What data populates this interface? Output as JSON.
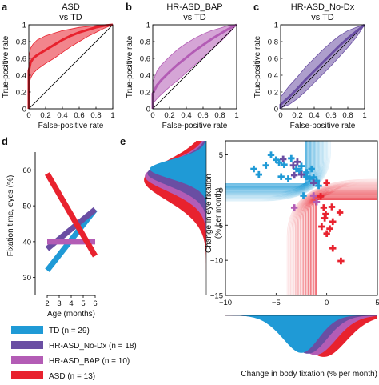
{
  "colors": {
    "TD": "#1f9ad6",
    "HR-ASD_No-Dx": "#6a4ea3",
    "HR-ASD_BAP": "#b35cb5",
    "ASD": "#e8222e"
  },
  "roc_panels": [
    {
      "letter": "a",
      "title_line1": "ASD",
      "title_line2": "vs TD",
      "group": "ASD",
      "xlabel": "False-positive rate",
      "ylabel": "True-positive rate",
      "xticks": [
        "0",
        "0.2",
        "0.4",
        "0.6",
        "0.8",
        "1"
      ],
      "yticks": [
        "0",
        "0.2",
        "0.4",
        "0.6",
        "0.8",
        "1"
      ],
      "curve": [
        [
          0,
          0
        ],
        [
          0,
          0.45
        ],
        [
          0.02,
          0.55
        ],
        [
          0.05,
          0.6
        ],
        [
          0.1,
          0.64
        ],
        [
          0.2,
          0.7
        ],
        [
          0.3,
          0.76
        ],
        [
          0.4,
          0.82
        ],
        [
          0.5,
          0.87
        ],
        [
          0.6,
          0.91
        ],
        [
          0.7,
          0.94
        ],
        [
          0.8,
          0.97
        ],
        [
          0.9,
          0.99
        ],
        [
          1,
          1
        ]
      ],
      "upper": [
        [
          0,
          0
        ],
        [
          0,
          0.62
        ],
        [
          0.02,
          0.72
        ],
        [
          0.05,
          0.77
        ],
        [
          0.1,
          0.82
        ],
        [
          0.2,
          0.87
        ],
        [
          0.3,
          0.9
        ],
        [
          0.4,
          0.93
        ],
        [
          0.5,
          0.95
        ],
        [
          0.6,
          0.97
        ],
        [
          0.7,
          0.98
        ],
        [
          0.8,
          0.99
        ],
        [
          0.9,
          1
        ],
        [
          1,
          1
        ]
      ],
      "lower": [
        [
          0,
          0
        ],
        [
          0,
          0.28
        ],
        [
          0.02,
          0.36
        ],
        [
          0.05,
          0.42
        ],
        [
          0.1,
          0.47
        ],
        [
          0.2,
          0.54
        ],
        [
          0.3,
          0.6
        ],
        [
          0.4,
          0.67
        ],
        [
          0.5,
          0.74
        ],
        [
          0.6,
          0.8
        ],
        [
          0.7,
          0.86
        ],
        [
          0.8,
          0.91
        ],
        [
          0.9,
          0.96
        ],
        [
          1,
          1
        ]
      ]
    },
    {
      "letter": "b",
      "title_line1": "HR-ASD_BAP",
      "title_line2": "vs TD",
      "group": "HR-ASD_BAP",
      "xlabel": "False-positive rate",
      "ylabel": "True-positive rate",
      "xticks": [
        "0",
        "0.2",
        "0.4",
        "0.6",
        "0.8",
        "1"
      ],
      "yticks": [
        "0",
        "0.2",
        "0.4",
        "0.6",
        "0.8",
        "1"
      ],
      "curve": [
        [
          0,
          0
        ],
        [
          0,
          0.18
        ],
        [
          0.05,
          0.28
        ],
        [
          0.1,
          0.34
        ],
        [
          0.2,
          0.44
        ],
        [
          0.3,
          0.53
        ],
        [
          0.4,
          0.61
        ],
        [
          0.5,
          0.69
        ],
        [
          0.6,
          0.76
        ],
        [
          0.7,
          0.83
        ],
        [
          0.8,
          0.89
        ],
        [
          0.9,
          0.95
        ],
        [
          1,
          1
        ]
      ],
      "upper": [
        [
          0,
          0
        ],
        [
          0,
          0.32
        ],
        [
          0.05,
          0.45
        ],
        [
          0.1,
          0.52
        ],
        [
          0.2,
          0.62
        ],
        [
          0.3,
          0.71
        ],
        [
          0.4,
          0.78
        ],
        [
          0.5,
          0.84
        ],
        [
          0.6,
          0.89
        ],
        [
          0.7,
          0.93
        ],
        [
          0.8,
          0.96
        ],
        [
          0.9,
          0.99
        ],
        [
          1,
          1
        ]
      ],
      "lower": [
        [
          0,
          0
        ],
        [
          0,
          0.06
        ],
        [
          0.05,
          0.12
        ],
        [
          0.1,
          0.17
        ],
        [
          0.2,
          0.26
        ],
        [
          0.3,
          0.34
        ],
        [
          0.4,
          0.43
        ],
        [
          0.5,
          0.52
        ],
        [
          0.6,
          0.61
        ],
        [
          0.7,
          0.7
        ],
        [
          0.8,
          0.79
        ],
        [
          0.9,
          0.89
        ],
        [
          1,
          1
        ]
      ]
    },
    {
      "letter": "c",
      "title_line1": "HR-ASD_No-Dx",
      "title_line2": "vs TD",
      "group": "HR-ASD_No-Dx",
      "xlabel": "False-positive rate",
      "ylabel": "True-positive rate",
      "xticks": [
        "0",
        "0.2",
        "0.4",
        "0.6",
        "0.8",
        "1"
      ],
      "yticks": [
        "0",
        "0.2",
        "0.4",
        "0.6",
        "0.8",
        "1"
      ],
      "curve": [
        [
          0,
          0
        ],
        [
          0,
          0.05
        ],
        [
          0.1,
          0.14
        ],
        [
          0.2,
          0.24
        ],
        [
          0.3,
          0.35
        ],
        [
          0.4,
          0.45
        ],
        [
          0.5,
          0.55
        ],
        [
          0.6,
          0.65
        ],
        [
          0.7,
          0.75
        ],
        [
          0.8,
          0.84
        ],
        [
          0.9,
          0.92
        ],
        [
          1,
          1
        ]
      ],
      "upper": [
        [
          0,
          0
        ],
        [
          0,
          0.14
        ],
        [
          0.1,
          0.27
        ],
        [
          0.2,
          0.38
        ],
        [
          0.3,
          0.5
        ],
        [
          0.4,
          0.6
        ],
        [
          0.5,
          0.7
        ],
        [
          0.6,
          0.79
        ],
        [
          0.7,
          0.87
        ],
        [
          0.8,
          0.93
        ],
        [
          0.9,
          0.97
        ],
        [
          1,
          1
        ]
      ],
      "lower": [
        [
          0,
          0
        ],
        [
          0,
          0.01
        ],
        [
          0.1,
          0.05
        ],
        [
          0.2,
          0.12
        ],
        [
          0.3,
          0.21
        ],
        [
          0.4,
          0.31
        ],
        [
          0.5,
          0.41
        ],
        [
          0.6,
          0.51
        ],
        [
          0.7,
          0.62
        ],
        [
          0.8,
          0.73
        ],
        [
          0.9,
          0.85
        ],
        [
          1,
          1
        ]
      ]
    }
  ],
  "panel_d": {
    "letter": "d",
    "ylabel": "Fixation time, eyes (%)",
    "xlabel_line1": "Age (months)",
    "xticks": [
      "2",
      "3",
      "4",
      "5",
      "6"
    ],
    "yticks": [
      "30",
      "40",
      "50",
      "60"
    ],
    "ylim": [
      25,
      65
    ],
    "xlim": [
      1,
      7
    ],
    "lines": [
      {
        "group": "TD",
        "x": [
          2,
          6
        ],
        "y": [
          32,
          49
        ]
      },
      {
        "group": "HR-ASD_No-Dx",
        "x": [
          2,
          6
        ],
        "y": [
          38,
          49
        ]
      },
      {
        "group": "HR-ASD_BAP",
        "x": [
          2,
          6
        ],
        "y": [
          40,
          40
        ]
      },
      {
        "group": "ASD",
        "x": [
          2,
          6
        ],
        "y": [
          59,
          36
        ]
      }
    ]
  },
  "panel_e": {
    "letter": "e",
    "ylabel_line1": "Change in eye fixation",
    "ylabel_line2": "(% per month)",
    "xlabel": "Change in body fixation (% per month)",
    "xticks": [
      "−10",
      "−5",
      "0",
      "5"
    ],
    "yticks": [
      "5",
      "0",
      "−5",
      "−10",
      "−15"
    ],
    "xlim": [
      -10,
      5
    ],
    "ylim": [
      -15,
      7
    ],
    "points": {
      "TD": [
        [
          -6.0,
          3.5
        ],
        [
          -5.5,
          5.0
        ],
        [
          -5.0,
          4.3
        ],
        [
          -4.7,
          3.9
        ],
        [
          -4.2,
          3.6
        ],
        [
          -3.5,
          4.5
        ],
        [
          -3.0,
          3.0
        ],
        [
          -2.7,
          2.7
        ],
        [
          -2.5,
          3.4
        ],
        [
          -2.0,
          2.5
        ],
        [
          -2.0,
          1.9
        ],
        [
          -1.5,
          3.0
        ],
        [
          -1.7,
          1.6
        ],
        [
          -1.3,
          1.8
        ],
        [
          -1.0,
          1.3
        ],
        [
          -4.5,
          1.9
        ],
        [
          -3.8,
          1.6
        ],
        [
          -7.2,
          3.0
        ],
        [
          -6.7,
          2.2
        ],
        [
          -2.3,
          -0.8
        ],
        [
          -0.8,
          0.6
        ]
      ],
      "HR-ASD_No-Dx": [
        [
          -4.3,
          4.4
        ],
        [
          -3.3,
          3.5
        ],
        [
          -2.9,
          4.0
        ],
        [
          -2.5,
          2.2
        ],
        [
          -3.2,
          2.1
        ],
        [
          -1.3,
          1.0
        ]
      ],
      "HR-ASD_BAP": [
        [
          -1.3,
          -0.8
        ],
        [
          -3.2,
          -2.5
        ],
        [
          -1.0,
          -1.7
        ]
      ],
      "ASD": [
        [
          0.0,
          1.0
        ],
        [
          -0.6,
          -0.9
        ],
        [
          -0.3,
          -2.5
        ],
        [
          0.5,
          -2.4
        ],
        [
          -0.1,
          -3.4
        ],
        [
          0.3,
          -5.5
        ],
        [
          0.0,
          -6.2
        ],
        [
          -0.5,
          -5.2
        ],
        [
          1.3,
          -3.2
        ],
        [
          0.6,
          -8.3
        ],
        [
          1.4,
          -10.1
        ],
        [
          -0.2,
          -4.0
        ],
        [
          0.6,
          -4.5
        ]
      ]
    }
  },
  "legend": {
    "items": [
      {
        "group": "TD",
        "name": "TD",
        "n_text": "(n = 29)"
      },
      {
        "group": "HR-ASD_No-Dx",
        "name": "HR-ASD_No-Dx",
        "n_text": "(n = 18)"
      },
      {
        "group": "HR-ASD_BAP",
        "name": "HR-ASD_BAP",
        "n_text": "(n = 10)"
      },
      {
        "group": "ASD",
        "name": "ASD",
        "n_text": "(n = 13)"
      }
    ]
  },
  "chart_data": [
    {
      "type": "area",
      "panel": "a",
      "title": "ASD vs TD",
      "xlabel": "False-positive rate",
      "ylabel": "True-positive rate",
      "xlim": [
        0,
        1
      ],
      "ylim": [
        0,
        1
      ]
    },
    {
      "type": "area",
      "panel": "b",
      "title": "HR-ASD_BAP vs TD",
      "xlabel": "False-positive rate",
      "ylabel": "True-positive rate",
      "xlim": [
        0,
        1
      ],
      "ylim": [
        0,
        1
      ]
    },
    {
      "type": "area",
      "panel": "c",
      "title": "HR-ASD_No-Dx vs TD",
      "xlabel": "False-positive rate",
      "ylabel": "True-positive rate",
      "xlim": [
        0,
        1
      ],
      "ylim": [
        0,
        1
      ]
    },
    {
      "type": "line",
      "panel": "d",
      "xlabel": "Age (months)",
      "ylabel": "Fixation time, eyes (%)",
      "x": [
        2,
        6
      ],
      "series": [
        {
          "name": "TD",
          "values": [
            32,
            49
          ]
        },
        {
          "name": "HR-ASD_No-Dx",
          "values": [
            38,
            49
          ]
        },
        {
          "name": "HR-ASD_BAP",
          "values": [
            40,
            40
          ]
        },
        {
          "name": "ASD",
          "values": [
            59,
            36
          ]
        }
      ]
    },
    {
      "type": "scatter",
      "panel": "e",
      "xlabel": "Change in body fixation (% per month)",
      "ylabel": "Change in eye fixation (% per month)",
      "xlim": [
        -10,
        5
      ],
      "ylim": [
        -15,
        7
      ]
    }
  ]
}
